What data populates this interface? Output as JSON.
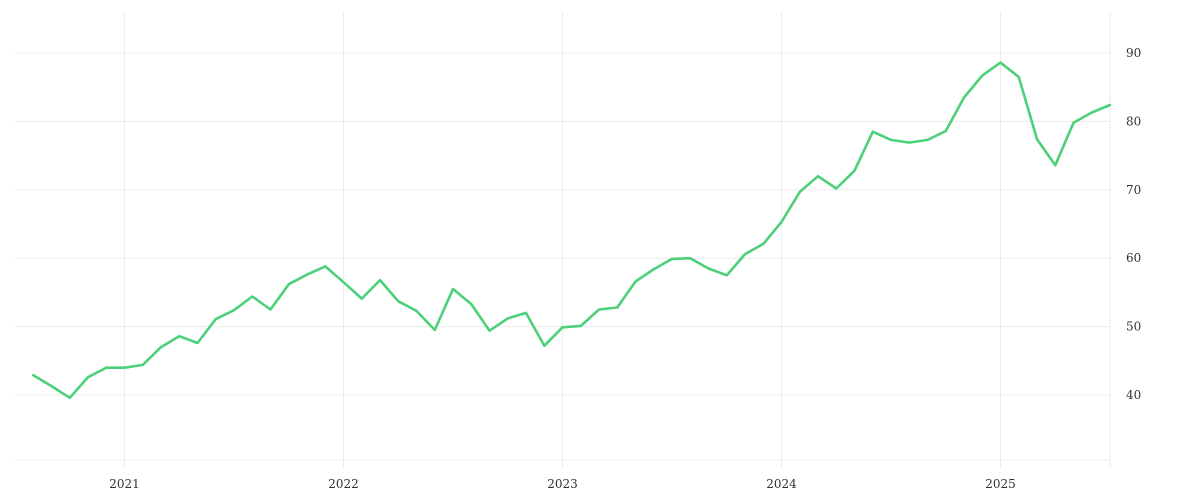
{
  "chart_data": {
    "type": "line",
    "title": "",
    "xlabel": "",
    "ylabel": "",
    "x_tick_labels": [
      "2021",
      "2022",
      "2023",
      "2024",
      "2025"
    ],
    "y_tick_labels": [
      "40",
      "50",
      "60",
      "70",
      "80",
      "90"
    ],
    "y_ticks": [
      40,
      50,
      60,
      70,
      80,
      90
    ],
    "ylim": [
      30.5,
      96
    ],
    "xlim": [
      "2020-07",
      "2025-07"
    ],
    "y_axis_position": "right",
    "grid": true,
    "legend": "none",
    "series": [
      {
        "color": "#4cd07a",
        "x": [
          "2020-08",
          "2020-09",
          "2020-10",
          "2020-11",
          "2020-12",
          "2021-01",
          "2021-02",
          "2021-03",
          "2021-04",
          "2021-05",
          "2021-06",
          "2021-07",
          "2021-08",
          "2021-09",
          "2021-10",
          "2021-11",
          "2021-12",
          "2022-01",
          "2022-02",
          "2022-03",
          "2022-04",
          "2022-05",
          "2022-06",
          "2022-07",
          "2022-08",
          "2022-09",
          "2022-10",
          "2022-11",
          "2022-12",
          "2023-01",
          "2023-02",
          "2023-03",
          "2023-04",
          "2023-05",
          "2023-06",
          "2023-07",
          "2023-08",
          "2023-09",
          "2023-10",
          "2023-11",
          "2023-12",
          "2024-01",
          "2024-02",
          "2024-03",
          "2024-04",
          "2024-05",
          "2024-06",
          "2024-07",
          "2024-08",
          "2024-09",
          "2024-10",
          "2024-11",
          "2024-12",
          "2025-01",
          "2025-02",
          "2025-03",
          "2025-04",
          "2025-05",
          "2025-06",
          "2025-07"
        ],
        "values": [
          42.9,
          41.3,
          39.6,
          42.6,
          44.0,
          44.0,
          44.4,
          47.0,
          48.6,
          47.6,
          51.1,
          52.4,
          54.4,
          52.5,
          56.2,
          57.6,
          58.8,
          56.5,
          54.1,
          56.8,
          53.7,
          52.3,
          49.5,
          55.5,
          53.3,
          49.4,
          51.2,
          52.0,
          47.2,
          49.9,
          50.1,
          52.5,
          52.8,
          56.6,
          58.4,
          59.9,
          60.0,
          58.5,
          57.5,
          60.6,
          62.1,
          65.3,
          69.7,
          72.0,
          70.2,
          72.8,
          78.5,
          77.3,
          76.9,
          77.3,
          78.6,
          83.5,
          86.7,
          88.6,
          86.5,
          77.4,
          73.6,
          79.8,
          81.3,
          82.4
        ]
      }
    ]
  }
}
